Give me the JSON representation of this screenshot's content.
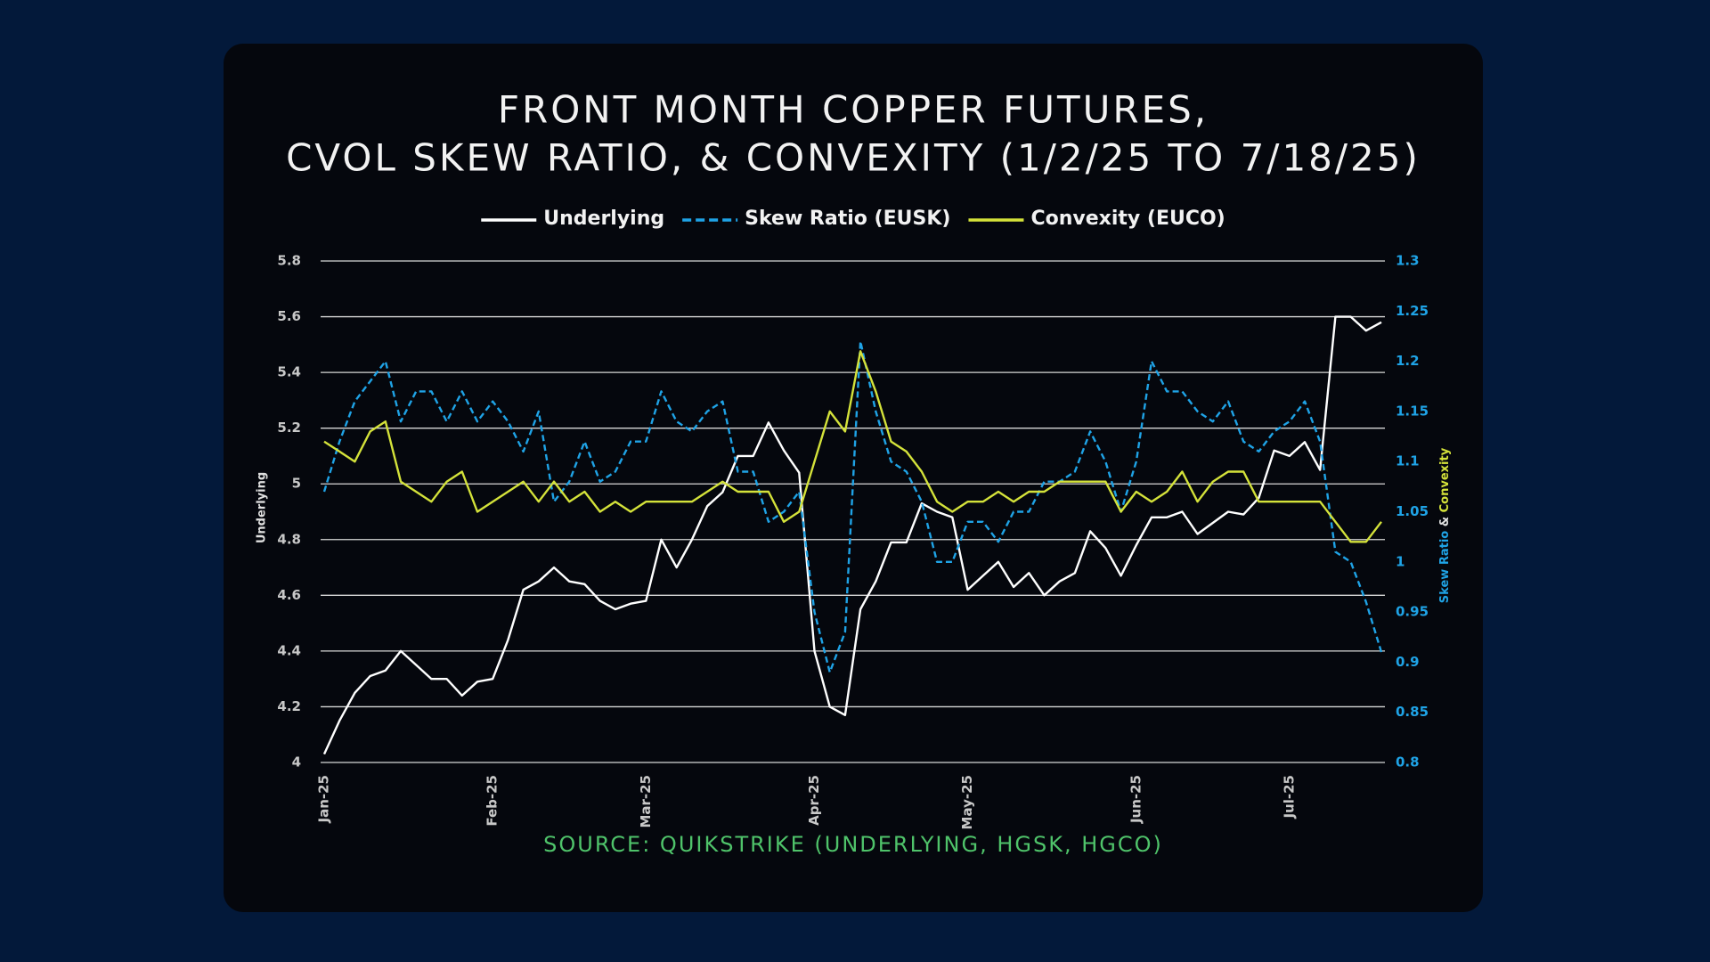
{
  "chart_data": {
    "type": "line",
    "title": [
      "FRONT MONTH COPPER FUTURES,",
      "CVOL SKEW RATIO, & CONVEXITY (1/2/25 TO 7/18/25)"
    ],
    "source": "SOURCE: QUIKSTRIKE (UNDERLYING, HGSK, HGCO)",
    "y_label": "Underlying",
    "y2_label": [
      "Skew Ratio",
      "&",
      "Convexity"
    ],
    "categories": [
      "Jan-25",
      null,
      null,
      null,
      null,
      null,
      null,
      null,
      null,
      null,
      null,
      "Feb-25",
      null,
      null,
      null,
      null,
      null,
      null,
      null,
      null,
      null,
      "Mar-25",
      null,
      null,
      null,
      null,
      null,
      null,
      null,
      null,
      null,
      null,
      "Apr-25",
      null,
      null,
      null,
      null,
      null,
      null,
      null,
      null,
      null,
      "May-25",
      null,
      null,
      null,
      null,
      null,
      null,
      null,
      null,
      null,
      null,
      "Jun-25",
      null,
      null,
      null,
      null,
      null,
      null,
      null,
      null,
      null,
      "Jul-25",
      null,
      null,
      null,
      null,
      null,
      null
    ],
    "series": [
      {
        "name": "Underlying",
        "color": "#ffffff",
        "dashed": false,
        "values": [
          4.03,
          4.15,
          4.25,
          4.31,
          4.33,
          4.4,
          4.35,
          4.3,
          4.3,
          4.24,
          4.29,
          4.3,
          4.44,
          4.62,
          4.65,
          4.7,
          4.65,
          4.64,
          4.58,
          4.55,
          4.57,
          4.58,
          4.8,
          4.7,
          4.8,
          4.92,
          4.97,
          5.1,
          5.1,
          5.22,
          5.12,
          5.04,
          4.4,
          4.2,
          4.17,
          4.55,
          4.65,
          4.79,
          4.79,
          4.93,
          4.9,
          4.88,
          4.62,
          4.67,
          4.72,
          4.63,
          4.68,
          4.6,
          4.65,
          4.68,
          4.83,
          4.77,
          4.67,
          4.78,
          4.88,
          4.88,
          4.9,
          4.82,
          4.86,
          4.9,
          4.89,
          4.95,
          5.12,
          5.1,
          5.15,
          5.05,
          5.6,
          5.6,
          5.55,
          5.58
        ]
      },
      {
        "name": "Skew Ratio (EUSK)",
        "color": "#1fa3e6",
        "dashed": true,
        "axis": "y2",
        "values": [
          1.07,
          1.12,
          1.16,
          1.18,
          1.2,
          1.14,
          1.17,
          1.17,
          1.14,
          1.17,
          1.14,
          1.16,
          1.14,
          1.11,
          1.15,
          1.06,
          1.08,
          1.12,
          1.08,
          1.09,
          1.12,
          1.12,
          1.17,
          1.14,
          1.13,
          1.15,
          1.16,
          1.09,
          1.09,
          1.04,
          1.05,
          1.07,
          0.95,
          0.89,
          0.93,
          1.22,
          1.15,
          1.1,
          1.09,
          1.06,
          1.0,
          1.0,
          1.04,
          1.04,
          1.02,
          1.05,
          1.05,
          1.08,
          1.08,
          1.09,
          1.13,
          1.1,
          1.05,
          1.1,
          1.2,
          1.17,
          1.17,
          1.15,
          1.14,
          1.16,
          1.12,
          1.11,
          1.13,
          1.14,
          1.16,
          1.12,
          1.01,
          1.0,
          0.96,
          0.91
        ]
      },
      {
        "name": "Convexity (EUCO)",
        "color": "#d4e23a",
        "dashed": false,
        "axis": "y2",
        "values": [
          1.12,
          1.11,
          1.1,
          1.13,
          1.14,
          1.08,
          1.07,
          1.06,
          1.08,
          1.09,
          1.05,
          1.06,
          1.07,
          1.08,
          1.06,
          1.08,
          1.06,
          1.07,
          1.05,
          1.06,
          1.05,
          1.06,
          1.06,
          1.06,
          1.06,
          1.07,
          1.08,
          1.07,
          1.07,
          1.07,
          1.04,
          1.05,
          1.1,
          1.15,
          1.13,
          1.21,
          1.17,
          1.12,
          1.11,
          1.09,
          1.06,
          1.05,
          1.06,
          1.06,
          1.07,
          1.06,
          1.07,
          1.07,
          1.08,
          1.08,
          1.08,
          1.08,
          1.05,
          1.07,
          1.06,
          1.07,
          1.09,
          1.06,
          1.08,
          1.09,
          1.09,
          1.06,
          1.06,
          1.06,
          1.06,
          1.06,
          1.04,
          1.02,
          1.02,
          1.04
        ]
      }
    ],
    "ylim": [
      4,
      5.8
    ],
    "yticks": [
      4,
      4.2,
      4.4,
      4.6,
      4.8,
      5,
      5.2,
      5.4,
      5.6,
      5.8
    ],
    "y2lim": [
      0.8,
      1.3
    ],
    "y2ticks": [
      0.8,
      0.85,
      0.9,
      0.95,
      1,
      1.05,
      1.1,
      1.15,
      1.2,
      1.25,
      1.3
    ],
    "grid": true,
    "legend": "top"
  }
}
